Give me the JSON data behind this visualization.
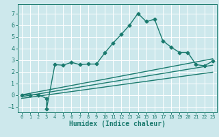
{
  "xlabel": "Humidex (Indice chaleur)",
  "bg_color": "#cde8ec",
  "grid_color": "#ffffff",
  "line_color": "#1a7a6e",
  "xlim": [
    -0.5,
    23.5
  ],
  "ylim": [
    -1.5,
    7.8
  ],
  "xticks": [
    0,
    1,
    2,
    3,
    4,
    5,
    6,
    7,
    8,
    9,
    10,
    11,
    12,
    13,
    14,
    15,
    16,
    17,
    18,
    19,
    20,
    21,
    22,
    23
  ],
  "yticks": [
    -1,
    0,
    1,
    2,
    3,
    4,
    5,
    6,
    7
  ],
  "series1_x": [
    0,
    1,
    2,
    3,
    3,
    4,
    5,
    6,
    7,
    8,
    9,
    10,
    11,
    12,
    13,
    14,
    15,
    16,
    17,
    18,
    19,
    20,
    21,
    22,
    23
  ],
  "series1_y": [
    0.0,
    0.0,
    0.0,
    -0.3,
    -1.2,
    2.6,
    2.55,
    2.8,
    2.6,
    2.65,
    2.65,
    3.6,
    4.45,
    5.2,
    6.0,
    7.0,
    6.3,
    6.5,
    4.65,
    4.1,
    3.65,
    3.65,
    2.6,
    2.5,
    2.9
  ],
  "series2_x": [
    0,
    23
  ],
  "series2_y": [
    0.0,
    3.1
  ],
  "series3_x": [
    0,
    23
  ],
  "series3_y": [
    -0.15,
    2.55
  ],
  "series4_x": [
    0,
    23
  ],
  "series4_y": [
    -0.3,
    1.95
  ],
  "marker": "D",
  "markersize": 2.5,
  "linewidth": 1.0,
  "xlabel_fontsize": 7,
  "xtick_fontsize": 5,
  "ytick_fontsize": 6
}
